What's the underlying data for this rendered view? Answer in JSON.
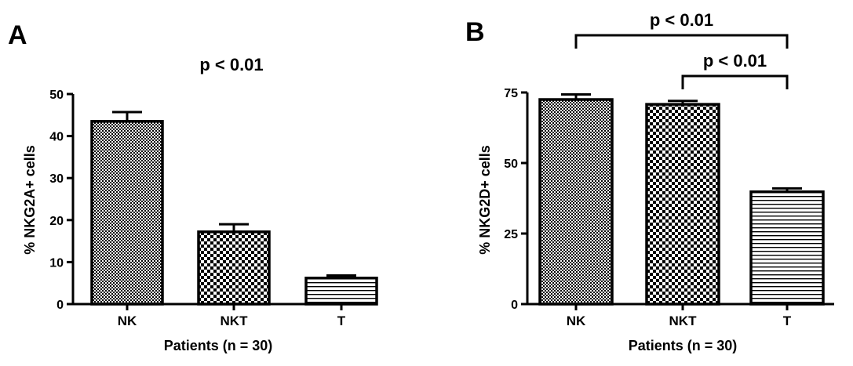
{
  "chart_data": [
    {
      "type": "bar",
      "panel_label": "A",
      "categories": [
        "NK",
        "NKT",
        "T"
      ],
      "values": [
        43.5,
        17.2,
        6.2
      ],
      "errors": [
        2.2,
        1.8,
        0.6
      ],
      "patterns": [
        "fine-check",
        "coarse-check",
        "horizontal-lines"
      ],
      "xlabel": "Patients (n = 30)",
      "ylabel": "% NKG2A+ cells",
      "ylim": [
        0,
        50
      ],
      "yticks": [
        "0",
        "10",
        "20",
        "30",
        "40",
        "50"
      ],
      "annotations": [
        {
          "text": "p < 0.01",
          "type": "text"
        }
      ]
    },
    {
      "type": "bar",
      "panel_label": "B",
      "categories": [
        "NK",
        "NKT",
        "T"
      ],
      "values": [
        72.5,
        70.8,
        39.8
      ],
      "errors": [
        1.8,
        1.2,
        1.2
      ],
      "patterns": [
        "fine-check",
        "coarse-check",
        "horizontal-lines"
      ],
      "xlabel": "Patients (n = 30)",
      "ylabel": "% NKG2D+ cells",
      "ylim": [
        0,
        75
      ],
      "yticks": [
        "0",
        "25",
        "50",
        "75"
      ],
      "annotations": [
        {
          "text": "p < 0.01",
          "type": "bracket",
          "from": "NK",
          "to": "T"
        },
        {
          "text": "p < 0.01",
          "type": "bracket",
          "from": "NKT",
          "to": "T"
        }
      ]
    }
  ]
}
